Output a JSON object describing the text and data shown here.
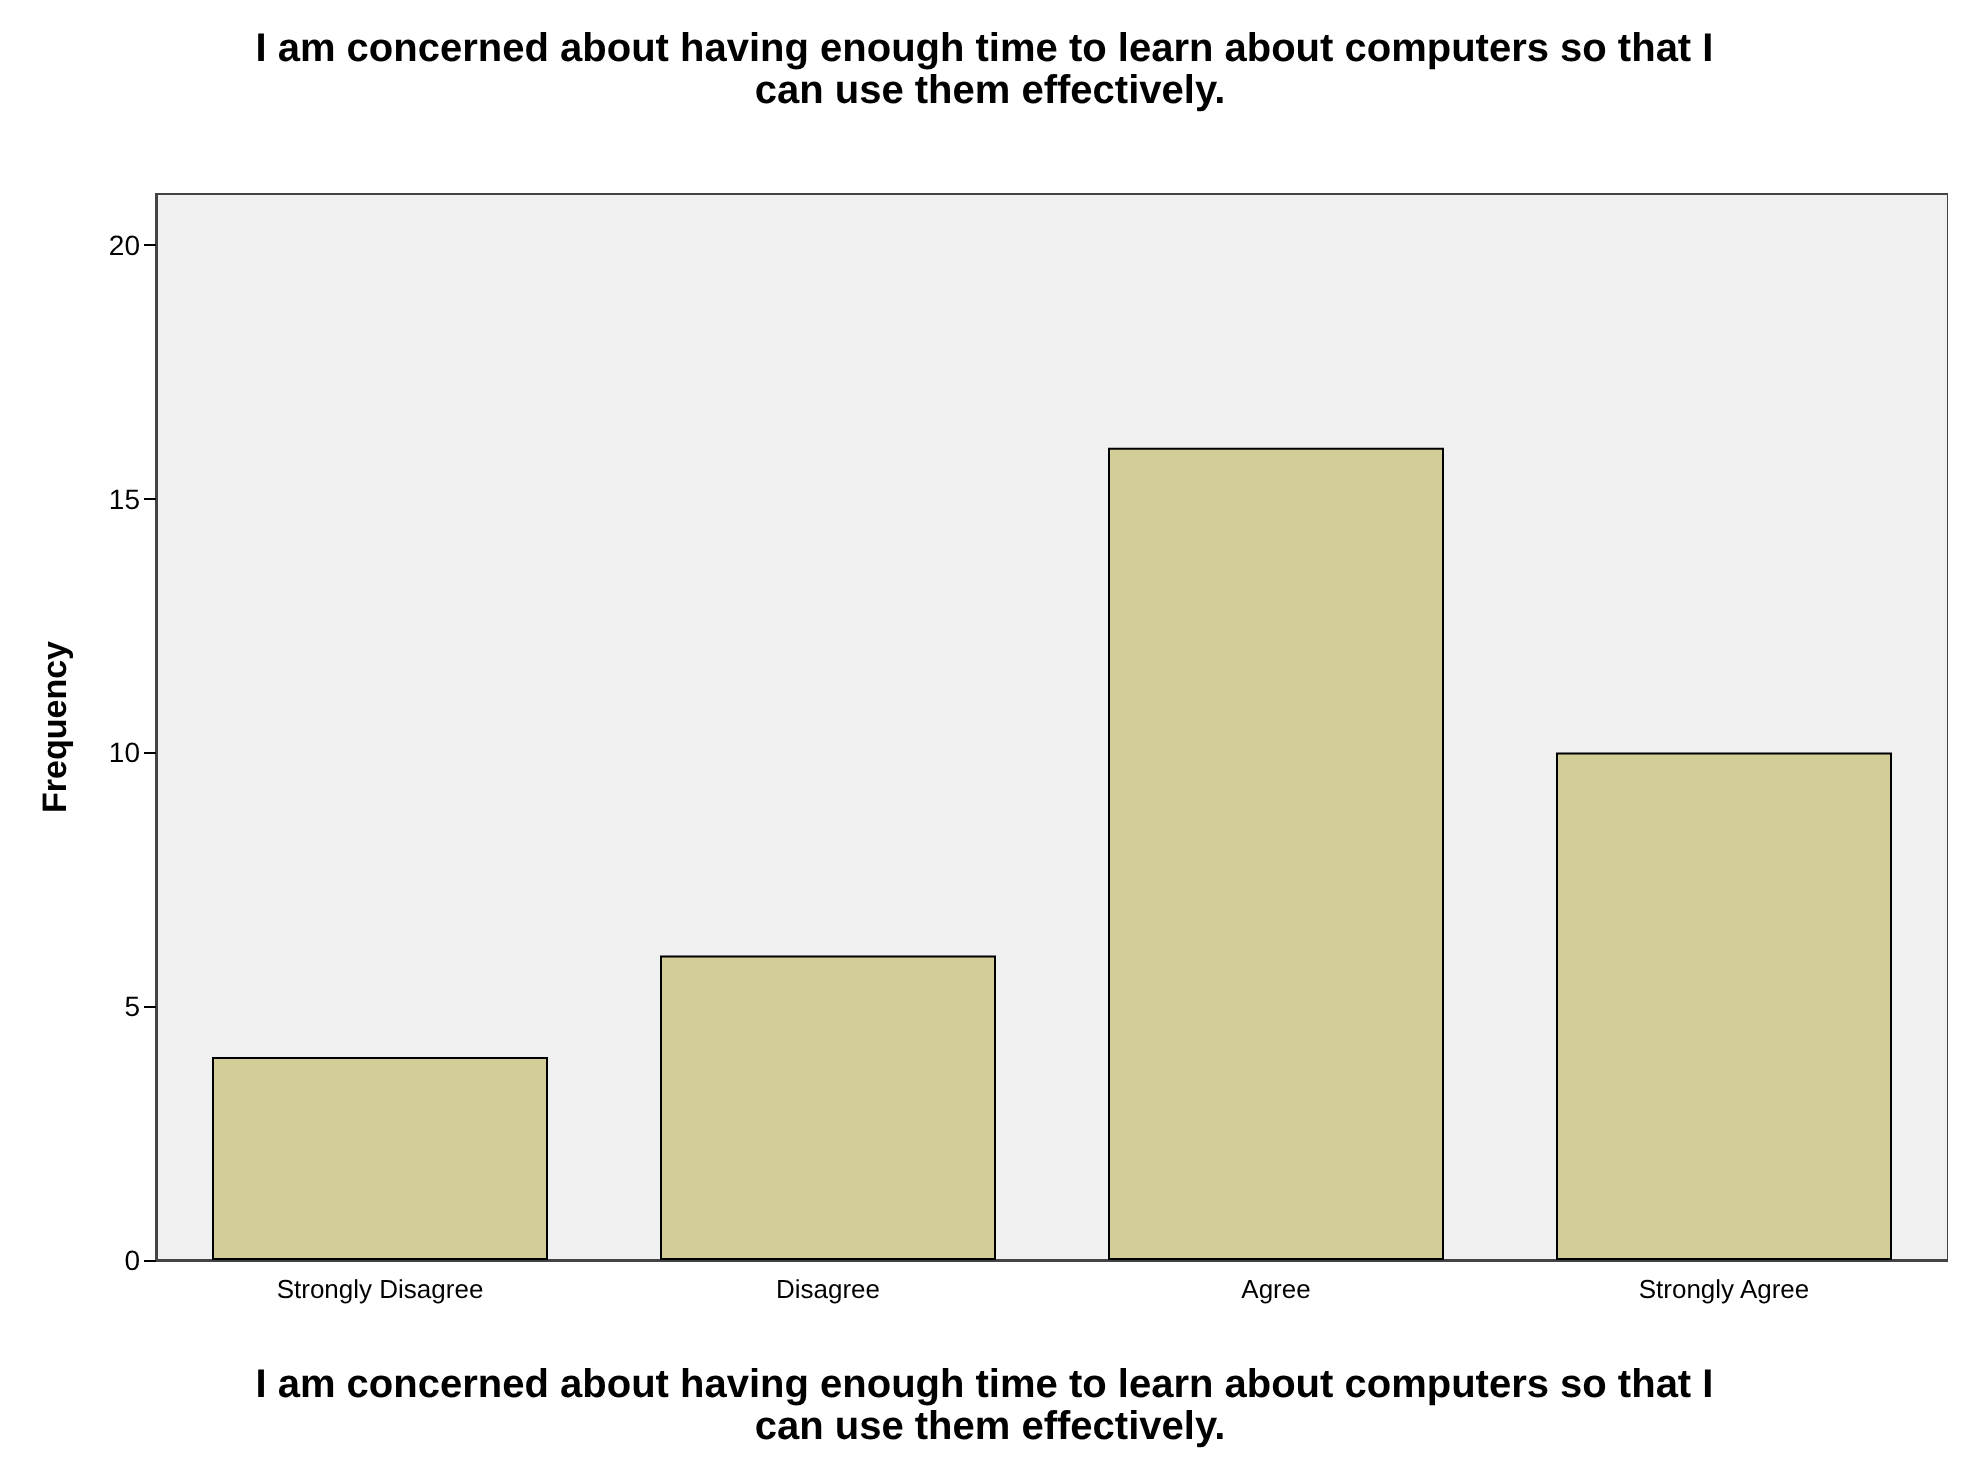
{
  "chart_data": {
    "type": "bar",
    "title": "I am concerned about having enough time to learn about computers so that I can use them effectively.",
    "xlabel": "I am concerned about having enough time to learn about computers so that I can use them effectively.",
    "ylabel": "Frequency",
    "categories": [
      "Strongly Disagree",
      "Disagree",
      "Agree",
      "Strongly Agree"
    ],
    "values": [
      4,
      6,
      16,
      10
    ],
    "color": "#d3ce97",
    "ylim": [
      0,
      21
    ],
    "yticks": [
      0,
      5,
      10,
      15,
      20
    ],
    "grid": false
  }
}
